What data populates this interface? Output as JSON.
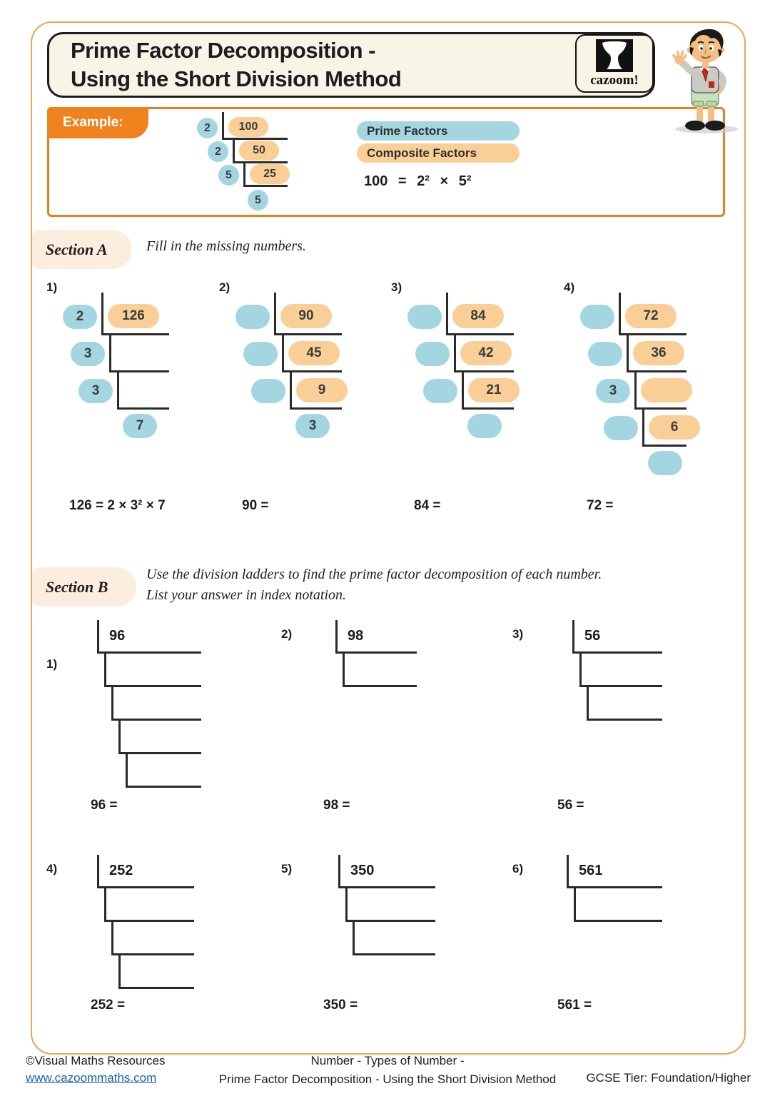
{
  "header": {
    "title_line1": "Prime Factor Decomposition -",
    "title_line2": "Using the Short Division Method",
    "logo_text": "cazoom!"
  },
  "example": {
    "label": "Example:",
    "ladder": {
      "rows": [
        {
          "divisor": "2",
          "value": "100"
        },
        {
          "divisor": "2",
          "value": "50"
        },
        {
          "divisor": "5",
          "value": "25"
        }
      ],
      "final": "5"
    },
    "legend_prime": "Prime Factors",
    "legend_composite": "Composite Factors",
    "equation": "100 = 2² × 5²"
  },
  "section_a": {
    "label": "Section A",
    "instruction": "Fill in the missing numbers.",
    "problems": [
      {
        "number": "1)",
        "ladder": {
          "rows": [
            {
              "divisor": "2",
              "value": "126"
            },
            {
              "divisor": "3",
              "value": null
            },
            {
              "divisor": "3",
              "value": null
            }
          ],
          "final": "7"
        },
        "answer": "126 = 2 × 3² × 7"
      },
      {
        "number": "2)",
        "ladder": {
          "rows": [
            {
              "divisor": "",
              "value": "90"
            },
            {
              "divisor": "",
              "value": "45"
            },
            {
              "divisor": "",
              "value": "9"
            }
          ],
          "final": "3"
        },
        "answer": "90 ="
      },
      {
        "number": "3)",
        "ladder": {
          "rows": [
            {
              "divisor": "",
              "value": "84"
            },
            {
              "divisor": "",
              "value": "42"
            },
            {
              "divisor": "",
              "value": "21"
            }
          ],
          "final": ""
        },
        "answer": "84 ="
      },
      {
        "number": "4)",
        "ladder": {
          "rows": [
            {
              "divisor": "",
              "value": "72"
            },
            {
              "divisor": "",
              "value": "36"
            },
            {
              "divisor": "3",
              "value": ""
            },
            {
              "divisor": "",
              "value": "6"
            }
          ],
          "final": ""
        },
        "answer": "72 ="
      }
    ]
  },
  "section_b": {
    "label": "Section B",
    "instruction_line1": "Use the division ladders to find the prime factor decomposition of each number.",
    "instruction_line2": "List your answer in index notation.",
    "problems": [
      {
        "number": "1)",
        "value": "96",
        "empty_steps": 4,
        "answer": "96 ="
      },
      {
        "number": "2)",
        "value": "98",
        "empty_steps": 1,
        "answer": "98 ="
      },
      {
        "number": "3)",
        "value": "56",
        "empty_steps": 2,
        "answer": "56 ="
      },
      {
        "number": "4)",
        "value": "252",
        "empty_steps": 3,
        "answer": "252 ="
      },
      {
        "number": "5)",
        "value": "350",
        "empty_steps": 2,
        "answer": "350 ="
      },
      {
        "number": "6)",
        "value": "561",
        "empty_steps": 1,
        "answer": "561 ="
      }
    ]
  },
  "footer": {
    "copyright": "©Visual Maths Resources",
    "website": "www.cazoommaths.com",
    "topic_line1": "Number - Types of Number -",
    "topic_line2": "Prime Factor Decomposition - Using the Short Division Method",
    "tier": "GCSE Tier: Foundation/Higher"
  },
  "colors": {
    "prime_factor_blue": "#A4D6E1",
    "composite_factor_orange": "#F9CF97",
    "accent_orange": "#F0821E",
    "page_border_orange": "#F2A354"
  }
}
